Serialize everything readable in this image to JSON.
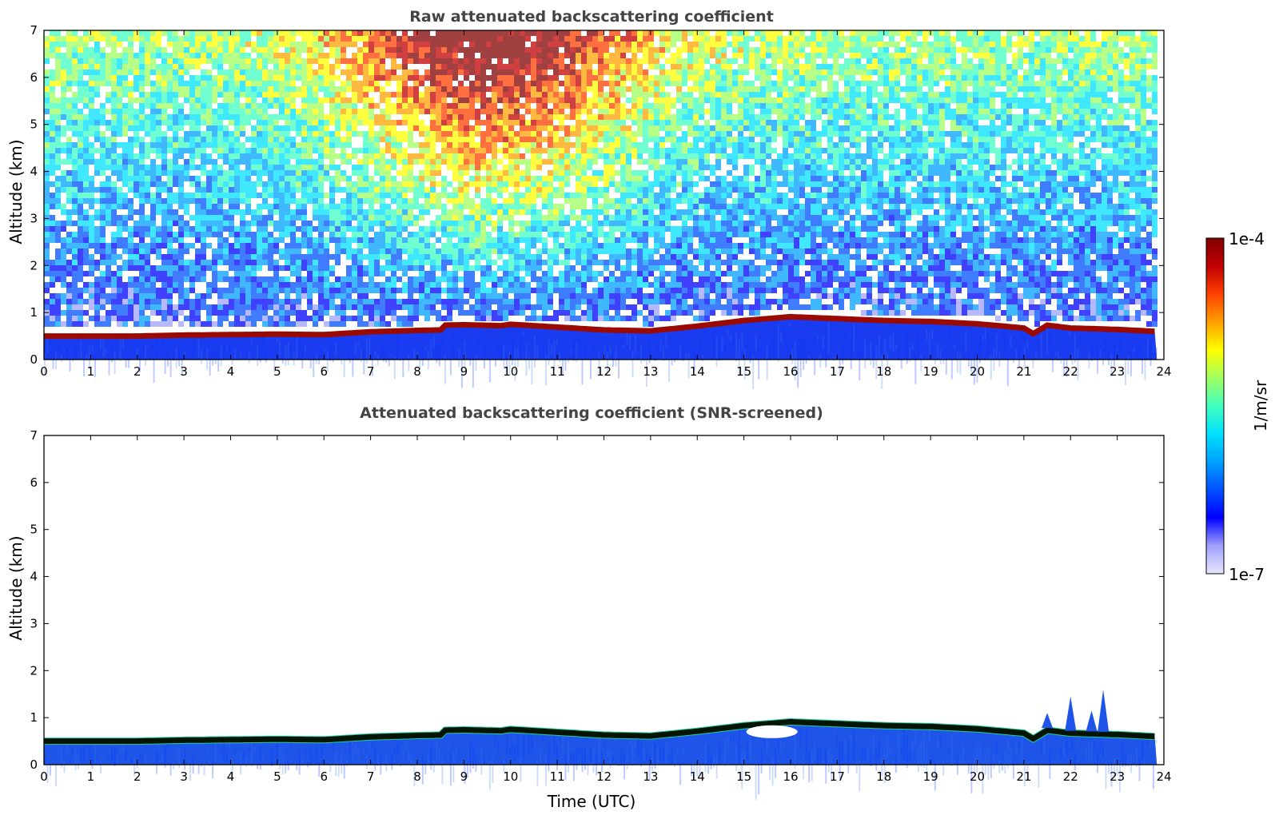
{
  "chart_data": [
    {
      "type": "heatmap",
      "title": "Raw attenuated backscattering coefficient",
      "xlabel": "",
      "ylabel": "Altitude (km)",
      "xlim": [
        0,
        24
      ],
      "ylim": [
        0,
        7
      ],
      "xticks": [
        "0",
        "1",
        "2",
        "3",
        "4",
        "5",
        "6",
        "7",
        "8",
        "9",
        "10",
        "11",
        "12",
        "13",
        "14",
        "15",
        "16",
        "17",
        "18",
        "19",
        "20",
        "21",
        "22",
        "23",
        "24"
      ],
      "yticks": [
        "0",
        "1",
        "2",
        "3",
        "4",
        "5",
        "6",
        "7"
      ],
      "layer_top_km": [
        [
          0,
          0.55
        ],
        [
          1,
          0.55
        ],
        [
          2,
          0.55
        ],
        [
          3,
          0.57
        ],
        [
          4,
          0.58
        ],
        [
          5,
          0.59
        ],
        [
          6,
          0.58
        ],
        [
          7,
          0.64
        ],
        [
          8,
          0.67
        ],
        [
          8.5,
          0.68
        ],
        [
          8.55,
          0.78
        ],
        [
          9,
          0.79
        ],
        [
          9.8,
          0.77
        ],
        [
          10,
          0.8
        ],
        [
          11,
          0.74
        ],
        [
          12,
          0.68
        ],
        [
          13,
          0.66
        ],
        [
          14,
          0.76
        ],
        [
          15,
          0.88
        ],
        [
          16,
          0.96
        ],
        [
          17,
          0.92
        ],
        [
          18,
          0.88
        ],
        [
          19,
          0.86
        ],
        [
          20,
          0.81
        ],
        [
          21,
          0.72
        ],
        [
          21.2,
          0.6
        ],
        [
          21.5,
          0.78
        ],
        [
          22,
          0.72
        ],
        [
          23,
          0.69
        ],
        [
          23.8,
          0.65
        ]
      ]
    },
    {
      "type": "heatmap",
      "title": "Attenuated backscattering coefficient (SNR-screened)",
      "xlabel": "Time (UTC)",
      "ylabel": "Altitude (km)",
      "xlim": [
        0,
        24
      ],
      "ylim": [
        0,
        7
      ],
      "xticks": [
        "0",
        "1",
        "2",
        "3",
        "4",
        "5",
        "6",
        "7",
        "8",
        "9",
        "10",
        "11",
        "12",
        "13",
        "14",
        "15",
        "16",
        "17",
        "18",
        "19",
        "20",
        "21",
        "22",
        "23",
        "24"
      ],
      "yticks": [
        "0",
        "1",
        "2",
        "3",
        "4",
        "5",
        "6",
        "7"
      ],
      "layer_top_km": [
        [
          0,
          0.55
        ],
        [
          1,
          0.55
        ],
        [
          2,
          0.55
        ],
        [
          3,
          0.57
        ],
        [
          4,
          0.58
        ],
        [
          5,
          0.59
        ],
        [
          6,
          0.58
        ],
        [
          7,
          0.64
        ],
        [
          8,
          0.67
        ],
        [
          8.5,
          0.68
        ],
        [
          8.55,
          0.78
        ],
        [
          9,
          0.79
        ],
        [
          9.8,
          0.77
        ],
        [
          10,
          0.8
        ],
        [
          11,
          0.74
        ],
        [
          12,
          0.68
        ],
        [
          13,
          0.66
        ],
        [
          14,
          0.76
        ],
        [
          15,
          0.88
        ],
        [
          16,
          0.96
        ],
        [
          17,
          0.92
        ],
        [
          18,
          0.88
        ],
        [
          19,
          0.86
        ],
        [
          20,
          0.81
        ],
        [
          21,
          0.72
        ],
        [
          21.2,
          0.6
        ],
        [
          21.5,
          0.78
        ],
        [
          22,
          0.72
        ],
        [
          23,
          0.69
        ],
        [
          23.8,
          0.65
        ]
      ],
      "plumes": [
        {
          "x": 22.0,
          "top_km": 1.45
        },
        {
          "x": 22.7,
          "top_km": 1.6
        },
        {
          "x": 22.45,
          "top_km": 1.15
        },
        {
          "x": 21.5,
          "top_km": 1.1
        }
      ]
    }
  ],
  "colorbar": {
    "label": "1/m/sr",
    "max_label": "1e-4",
    "min_label": "1e-7",
    "colors": [
      "#e8e8ff",
      "#a0a0ff",
      "#0000ff",
      "#0050ff",
      "#00a0ff",
      "#00e0ff",
      "#40ffc0",
      "#a0ff60",
      "#ffff00",
      "#ffa000",
      "#ff4000",
      "#c00000",
      "#800000"
    ]
  }
}
